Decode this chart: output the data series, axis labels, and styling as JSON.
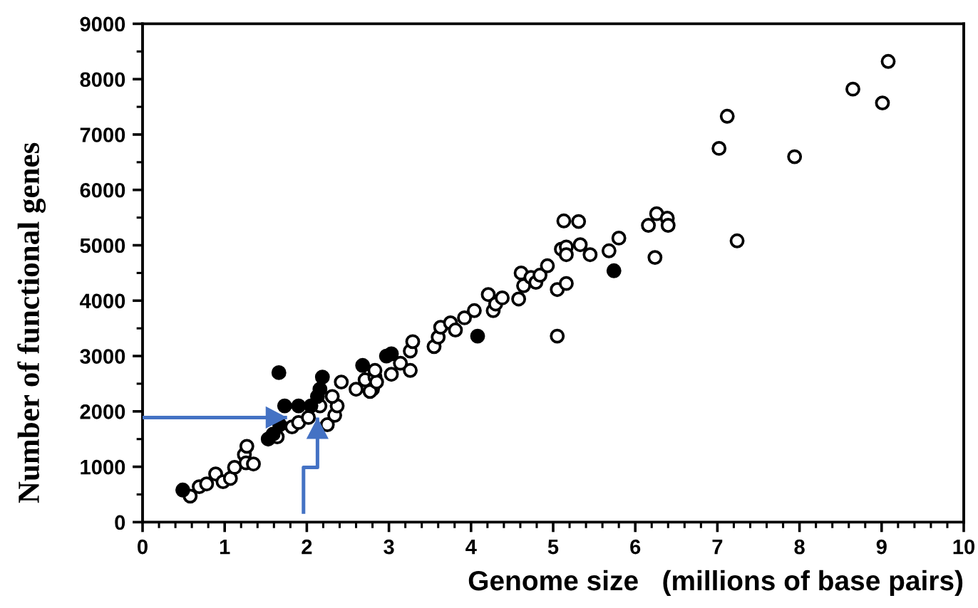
{
  "chart_data": {
    "type": "scatter",
    "xlabel": "Genome size   (millions of base pairs)",
    "ylabel": "Number of functional genes",
    "marker": "circle",
    "xlim": [
      0,
      10
    ],
    "ylim": [
      0,
      9000
    ],
    "xticks": [
      0,
      {
        "value": 0.2,
        "label": null
      },
      {
        "value": 0.4,
        "label": null
      },
      {
        "value": 0.6,
        "label": null
      },
      {
        "value": 0.8,
        "label": null
      },
      1,
      {
        "value": 1.2,
        "label": null
      },
      {
        "value": 1.4,
        "label": null
      },
      {
        "value": 1.6,
        "label": null
      },
      {
        "value": 1.8,
        "label": null
      },
      2,
      {
        "value": 2.2,
        "label": null
      },
      {
        "value": 2.4,
        "label": null
      },
      {
        "value": 2.6,
        "label": null
      },
      {
        "value": 2.8,
        "label": null
      },
      3,
      {
        "value": 3.2,
        "label": null
      },
      {
        "value": 3.4,
        "label": null
      },
      {
        "value": 3.6,
        "label": null
      },
      {
        "value": 3.8,
        "label": null
      },
      4,
      {
        "value": 4.2,
        "label": null
      },
      {
        "value": 4.4,
        "label": null
      },
      {
        "value": 4.6,
        "label": null
      },
      {
        "value": 4.8,
        "label": null
      },
      5,
      {
        "value": 5.2,
        "label": null
      },
      {
        "value": 5.4,
        "label": null
      },
      {
        "value": 5.6,
        "label": null
      },
      {
        "value": 5.8,
        "label": null
      },
      6,
      {
        "value": 6.2,
        "label": null
      },
      {
        "value": 6.4,
        "label": null
      },
      {
        "value": 6.6,
        "label": null
      },
      {
        "value": 6.8,
        "label": null
      },
      7,
      {
        "value": 7.2,
        "label": null
      },
      {
        "value": 7.4,
        "label": null
      },
      {
        "value": 7.6,
        "label": null
      },
      {
        "value": 7.8,
        "label": null
      },
      8,
      {
        "value": 8.2,
        "label": null
      },
      {
        "value": 8.4,
        "label": null
      },
      {
        "value": 8.6,
        "label": null
      },
      {
        "value": 8.8,
        "label": null
      },
      9,
      {
        "value": 9.2,
        "label": null
      },
      {
        "value": 9.4,
        "label": null
      },
      {
        "value": 9.6,
        "label": null
      },
      {
        "value": 9.8,
        "label": null
      },
      10
    ],
    "yticks": [
      0,
      {
        "value": 500,
        "label": null
      },
      1000,
      {
        "value": 1500,
        "label": null
      },
      2000,
      {
        "value": 2500,
        "label": null
      },
      3000,
      {
        "value": 3500,
        "label": null
      },
      4000,
      {
        "value": 4500,
        "label": null
      },
      5000,
      {
        "value": 5500,
        "label": null
      },
      6000,
      {
        "value": 6500,
        "label": null
      },
      7000,
      {
        "value": 7500,
        "label": null
      },
      8000,
      {
        "value": 8500,
        "label": null
      },
      9000
    ],
    "series": [
      {
        "color": "#ffffff",
        "x": [
          0.58,
          0.69,
          0.78,
          0.89,
          0.98,
          1.07,
          1.12,
          1.24,
          1.27,
          1.26,
          1.35,
          1.64,
          1.82,
          1.9,
          2.02,
          2.16,
          2.25,
          2.34,
          2.37,
          2.31,
          2.42,
          2.6,
          2.8,
          2.71,
          2.83,
          3.03,
          2.77,
          2.85,
          2.83,
          3.14,
          3.26,
          3.26,
          3.29,
          3.55,
          3.6,
          3.63,
          3.75,
          3.81,
          3.92,
          4.04,
          4.21,
          4.27,
          4.3,
          4.38,
          4.58,
          4.61,
          4.64,
          4.73,
          4.79,
          4.84,
          4.93,
          5.05,
          5.1,
          5.16,
          5.13,
          5.31,
          6.26,
          6.39,
          6.16,
          6.4,
          6.24,
          5.8,
          5.68,
          5.45,
          5.33,
          5.16,
          5.16,
          5.05,
          9.08,
          8.65,
          9.01,
          7.12,
          7.02,
          7.94,
          7.24
        ],
        "values": [
          470,
          640,
          690,
          870,
          730,
          790,
          990,
          1220,
          1370,
          1070,
          1050,
          1540,
          1720,
          1800,
          1890,
          2100,
          1760,
          1930,
          2100,
          2270,
          2530,
          2400,
          2400,
          2570,
          2620,
          2670,
          2360,
          2530,
          2740,
          2870,
          2740,
          3090,
          3260,
          3170,
          3340,
          3520,
          3600,
          3470,
          3690,
          3820,
          4110,
          3820,
          3940,
          4050,
          4030,
          4500,
          4270,
          4420,
          4330,
          4460,
          4630,
          4200,
          4930,
          4970,
          5440,
          5430,
          5570,
          5490,
          5360,
          5360,
          4780,
          5130,
          4900,
          4830,
          5010,
          4830,
          4310,
          3360,
          8320,
          7820,
          7570,
          7330,
          6750,
          6600,
          5080
        ]
      },
      {
        "color": "#000000",
        "x": [
          0.49,
          1.66,
          2.19,
          2.16,
          1.73,
          1.9,
          2.05,
          1.53,
          1.59,
          1.67,
          2.13,
          2.68,
          2.97,
          3.03,
          4.08,
          5.74
        ],
        "values": [
          580,
          2700,
          2620,
          2400,
          2100,
          2100,
          2100,
          1500,
          1590,
          1760,
          2270,
          2830,
          3000,
          3040,
          3360,
          4540
        ]
      },
      {
        "type": "line",
        "marker": "none",
        "color": "#4472c4",
        "x": [
          0,
          1.76
        ],
        "values": [
          1890,
          1890
        ]
      },
      {
        "type": "line",
        "marker": "none",
        "color": "#4472c4",
        "x": [
          1.96,
          1.96,
          2.13,
          2.13
        ],
        "values": [
          150,
          990,
          990,
          1890
        ]
      }
    ]
  }
}
